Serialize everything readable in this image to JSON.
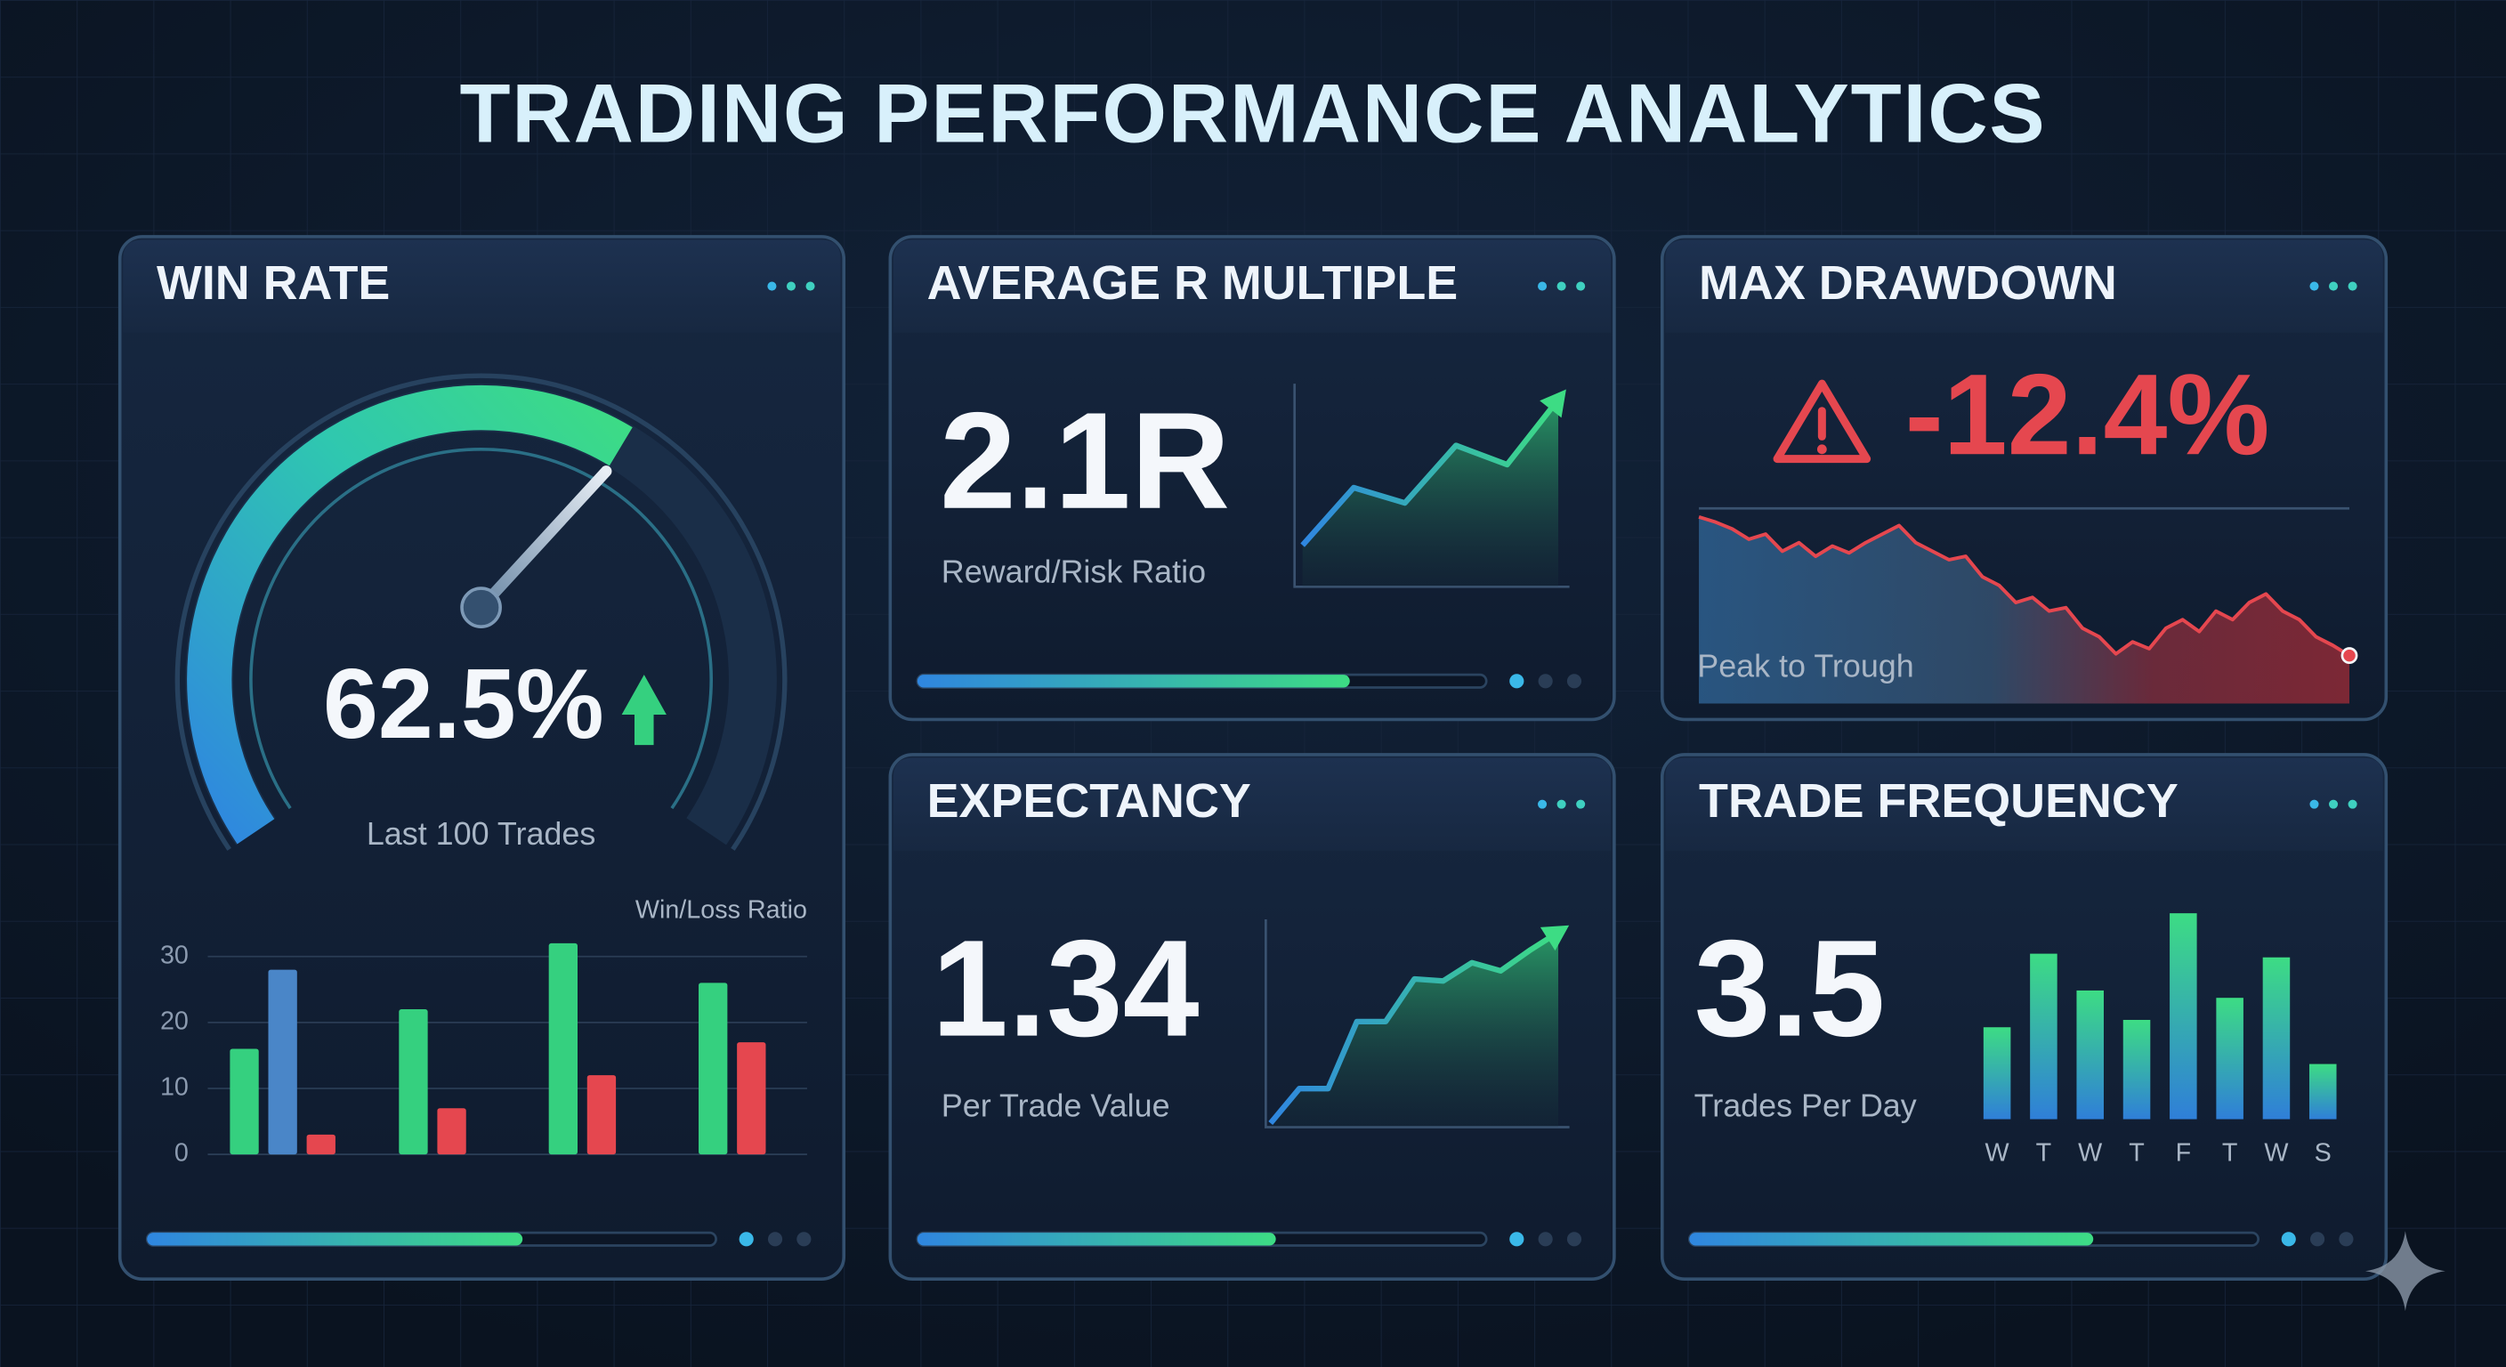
{
  "title": "TRADING PERFORMANCE ANALYTICS",
  "chart_data": [
    {
      "type": "gauge",
      "title": "WIN RATE",
      "value": 62.5,
      "value_label": "62.5%",
      "caption": "Last 100 Trades",
      "ylim": [
        0,
        100
      ],
      "progress": 66
    },
    {
      "type": "bar",
      "title": "Win/Loss Ratio",
      "categories": [
        null,
        null,
        null,
        null
      ],
      "series": [
        {
          "color": "#35d07f",
          "values": [
            16,
            22,
            32,
            26
          ]
        },
        {
          "color": "#4a86c8",
          "values": [
            28,
            null,
            null,
            null
          ]
        },
        {
          "color": "#e5474f",
          "values": [
            3,
            7,
            12,
            17
          ]
        }
      ],
      "ylim": [
        0,
        32
      ],
      "yticks": [
        0,
        10,
        20,
        30
      ],
      "grid": true
    },
    {
      "type": "line",
      "title": "AVERAGE R MULTIPLE",
      "value": 2.1,
      "value_label": "2.1R",
      "caption": "Reward/Risk Ratio",
      "values": [
        20,
        50,
        42,
        72,
        62,
        96
      ],
      "ylim": [
        0,
        100
      ],
      "color": "#3ddc84",
      "progress": 76
    },
    {
      "type": "area",
      "title": "MAX DRAWDOWN",
      "value": -12.4,
      "value_label": "-12.4%",
      "caption": "Peak to Trough",
      "values": [
        95,
        92,
        88,
        82,
        85,
        75,
        80,
        72,
        78,
        74,
        80,
        85,
        90,
        80,
        75,
        70,
        72,
        60,
        55,
        45,
        48,
        40,
        42,
        30,
        25,
        15,
        22,
        18,
        30,
        35,
        28,
        40,
        35,
        45,
        50,
        40,
        35,
        25,
        20,
        14
      ],
      "ylim": [
        0,
        100
      ],
      "color": "#e5474f"
    },
    {
      "type": "line",
      "title": "EXPECTANCY",
      "value": 1.34,
      "caption": "Per Trade Value",
      "values": [
        2,
        19,
        19,
        52,
        52,
        73,
        72,
        81,
        77,
        87,
        96
      ],
      "ylim": [
        0,
        100
      ],
      "color": "#3ddc84",
      "progress": 63
    },
    {
      "type": "bar",
      "title": "TRADE FREQUENCY",
      "value": 3.5,
      "caption": "Trades Per Day",
      "categories": [
        "W",
        "T",
        "W",
        "T",
        "F",
        "T",
        "W",
        "S"
      ],
      "values": [
        2.5,
        4.5,
        3.5,
        2.7,
        5.6,
        3.3,
        4.4,
        1.5
      ],
      "ylim": [
        0,
        6
      ],
      "color": "#3ddc84",
      "progress": 71
    }
  ]
}
